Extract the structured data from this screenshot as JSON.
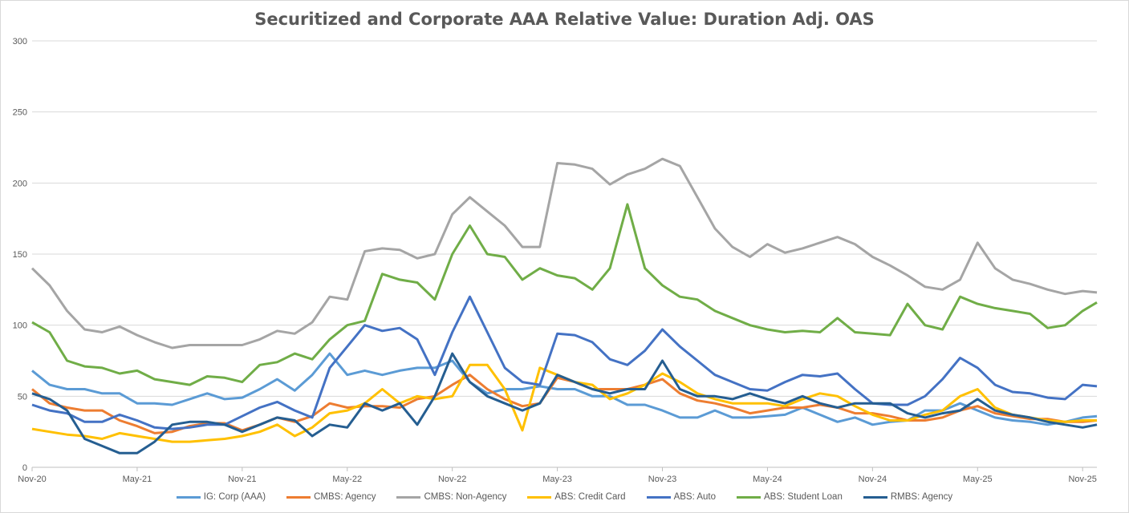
{
  "chart_data": {
    "type": "line",
    "title": "Securitized and Corporate AAA Relative Value: Duration Adj. OAS",
    "xlabel": "",
    "ylabel": "",
    "ylim": [
      0,
      300
    ],
    "yticks": [
      "0",
      "50",
      "100",
      "150",
      "200",
      "250",
      "300"
    ],
    "xticks": [
      "Nov-20",
      "May-21",
      "Nov-21",
      "May-22",
      "Nov-22",
      "May-23",
      "Nov-23",
      "May-24",
      "Nov-24",
      "May-25",
      "Nov-25"
    ],
    "grid": "horizontal",
    "legend": "bottom",
    "x": [
      "2020-11",
      "2020-12",
      "2021-01",
      "2021-02",
      "2021-03",
      "2021-04",
      "2021-05",
      "2021-06",
      "2021-07",
      "2021-08",
      "2021-09",
      "2021-10",
      "2021-11",
      "2021-12",
      "2022-01",
      "2022-02",
      "2022-03",
      "2022-04",
      "2022-05",
      "2022-06",
      "2022-07",
      "2022-08",
      "2022-09",
      "2022-10",
      "2022-11",
      "2022-12",
      "2023-01",
      "2023-02",
      "2023-03",
      "2023-04",
      "2023-05",
      "2023-06",
      "2023-07",
      "2023-08",
      "2023-09",
      "2023-10",
      "2023-11",
      "2023-12",
      "2024-01",
      "2024-02",
      "2024-03",
      "2024-04",
      "2024-05",
      "2024-06",
      "2024-07",
      "2024-08",
      "2024-09",
      "2024-10",
      "2024-11",
      "2024-12",
      "2025-01",
      "2025-02",
      "2025-03",
      "2025-04",
      "2025-05",
      "2025-06",
      "2025-07",
      "2025-08",
      "2025-09",
      "2025-10",
      "2025-11",
      "2025-12"
    ],
    "series": [
      {
        "name": "IG: Corp (AAA)",
        "color": "#5B9BD5",
        "values": [
          68,
          58,
          55,
          55,
          52,
          52,
          45,
          45,
          44,
          48,
          52,
          48,
          49,
          55,
          62,
          54,
          65,
          80,
          65,
          68,
          65,
          68,
          70,
          70,
          75,
          60,
          52,
          55,
          55,
          57,
          55,
          55,
          50,
          50,
          44,
          44,
          40,
          35,
          35,
          40,
          35,
          35,
          36,
          37,
          42,
          37,
          32,
          35,
          30,
          32,
          33,
          40,
          40,
          45,
          40,
          35,
          33,
          32,
          30,
          32,
          35,
          36
        ]
      },
      {
        "name": "CMBS: Agency",
        "color": "#ED7D31",
        "values": [
          55,
          45,
          42,
          40,
          40,
          33,
          29,
          24,
          25,
          29,
          31,
          31,
          26,
          30,
          35,
          32,
          36,
          45,
          42,
          43,
          43,
          42,
          48,
          50,
          58,
          65,
          55,
          48,
          43,
          45,
          63,
          60,
          55,
          55,
          55,
          58,
          62,
          52,
          47,
          45,
          42,
          38,
          40,
          42,
          42,
          44,
          42,
          38,
          38,
          36,
          33,
          33,
          35,
          40,
          43,
          38,
          36,
          34,
          34,
          32,
          32,
          33
        ]
      },
      {
        "name": "CMBS: Non-Agency",
        "color": "#A5A5A5",
        "values": [
          140,
          128,
          110,
          97,
          95,
          99,
          93,
          88,
          84,
          86,
          86,
          86,
          86,
          90,
          96,
          94,
          102,
          120,
          118,
          152,
          154,
          153,
          147,
          150,
          178,
          190,
          180,
          170,
          155,
          155,
          214,
          213,
          210,
          199,
          206,
          210,
          217,
          212,
          190,
          168,
          155,
          148,
          157,
          151,
          154,
          158,
          162,
          157,
          148,
          142,
          135,
          127,
          125,
          132,
          158,
          140,
          132,
          129,
          125,
          122,
          124,
          123
        ]
      },
      {
        "name": "ABS: Credit Card",
        "color": "#FFC000",
        "values": [
          27,
          25,
          23,
          22,
          20,
          24,
          22,
          20,
          18,
          18,
          19,
          20,
          22,
          25,
          30,
          22,
          28,
          38,
          40,
          45,
          55,
          45,
          50,
          48,
          50,
          72,
          72,
          55,
          26,
          70,
          65,
          60,
          58,
          48,
          52,
          58,
          66,
          60,
          52,
          48,
          45,
          45,
          45,
          43,
          48,
          52,
          50,
          43,
          37,
          33,
          33,
          37,
          40,
          50,
          55,
          42,
          37,
          35,
          33,
          32,
          33,
          33
        ]
      },
      {
        "name": "ABS: Auto",
        "color": "#4472C4",
        "values": [
          44,
          40,
          38,
          32,
          32,
          37,
          33,
          28,
          27,
          28,
          30,
          30,
          36,
          42,
          46,
          40,
          35,
          70,
          85,
          100,
          96,
          98,
          90,
          65,
          95,
          120,
          95,
          70,
          60,
          58,
          94,
          93,
          88,
          76,
          72,
          82,
          97,
          85,
          75,
          65,
          60,
          55,
          54,
          60,
          65,
          64,
          66,
          55,
          45,
          44,
          44,
          50,
          62,
          77,
          70,
          58,
          53,
          52,
          49,
          48,
          58,
          57
        ]
      },
      {
        "name": "ABS: Student Loan",
        "color": "#70AD47",
        "values": [
          102,
          95,
          75,
          71,
          70,
          66,
          68,
          62,
          60,
          58,
          64,
          63,
          60,
          72,
          74,
          80,
          76,
          90,
          100,
          103,
          136,
          132,
          130,
          118,
          150,
          170,
          150,
          148,
          132,
          140,
          135,
          133,
          125,
          140,
          185,
          140,
          128,
          120,
          118,
          110,
          105,
          100,
          97,
          95,
          96,
          95,
          105,
          95,
          94,
          93,
          115,
          100,
          97,
          120,
          115,
          112,
          110,
          108,
          98,
          100,
          110,
          116
        ]
      },
      {
        "name": "RMBS: Agency",
        "color": "#255E91",
        "values": [
          52,
          48,
          40,
          20,
          15,
          10,
          10,
          18,
          30,
          32,
          32,
          30,
          25,
          30,
          35,
          33,
          22,
          30,
          28,
          45,
          40,
          45,
          30,
          50,
          80,
          60,
          50,
          45,
          40,
          45,
          65,
          60,
          55,
          52,
          55,
          55,
          75,
          55,
          50,
          50,
          48,
          52,
          48,
          45,
          50,
          45,
          42,
          45,
          45,
          45,
          38,
          35,
          38,
          40,
          48,
          40,
          37,
          35,
          32,
          30,
          28,
          30
        ]
      }
    ]
  }
}
